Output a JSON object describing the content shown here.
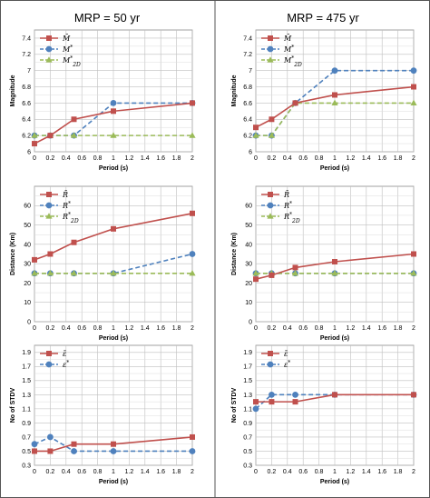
{
  "columns": [
    "MRP = 50 yr",
    "MRP = 475 yr"
  ],
  "chart_data": [
    {
      "type": "line",
      "col": 0,
      "row": 0,
      "xlabel": "Period (s)",
      "ylabel": "Magnitude",
      "xlim": [
        0,
        2
      ],
      "ylim": [
        6,
        7.5
      ],
      "xticks": [
        "0",
        "0.2",
        "0.4",
        "0.6",
        "0.8",
        "1",
        "1.2",
        "1.4",
        "1.6",
        "1.8",
        "2"
      ],
      "yticks": [
        "6",
        "6.2",
        "6.4",
        "6.6",
        "6.8",
        "7",
        "7.2",
        "7.4"
      ],
      "legend": "top-left",
      "series": [
        {
          "name": "M̄",
          "color": "#c0504d",
          "marker": "square",
          "dash": false,
          "x": [
            0,
            0.2,
            0.5,
            1,
            2
          ],
          "y": [
            6.1,
            6.2,
            6.4,
            6.5,
            6.6
          ]
        },
        {
          "name": "M*",
          "color": "#4f81bd",
          "marker": "circle",
          "dash": true,
          "x": [
            0,
            0.2,
            0.5,
            1,
            2
          ],
          "y": [
            6.2,
            6.2,
            6.2,
            6.6,
            6.6
          ]
        },
        {
          "name": "M*2D",
          "color": "#9bbb59",
          "marker": "triangle",
          "dash": true,
          "x": [
            0,
            0.2,
            0.5,
            1,
            2
          ],
          "y": [
            6.2,
            6.2,
            6.2,
            6.2,
            6.2
          ]
        }
      ]
    },
    {
      "type": "line",
      "col": 1,
      "row": 0,
      "xlabel": "Period (s)",
      "ylabel": "Magnitude",
      "xlim": [
        0,
        2
      ],
      "ylim": [
        6,
        7.5
      ],
      "xticks": [
        "0",
        "0.2",
        "0.4",
        "0.6",
        "0.8",
        "1",
        "1.2",
        "1.4",
        "1.6",
        "1.8",
        "2"
      ],
      "yticks": [
        "6",
        "6.2",
        "6.4",
        "6.6",
        "6.8",
        "7",
        "7.2",
        "7.4"
      ],
      "legend": "top-left",
      "series": [
        {
          "name": "M̄",
          "color": "#c0504d",
          "marker": "square",
          "dash": false,
          "x": [
            0,
            0.2,
            0.5,
            1,
            2
          ],
          "y": [
            6.3,
            6.4,
            6.6,
            6.7,
            6.8
          ]
        },
        {
          "name": "M*",
          "color": "#4f81bd",
          "marker": "circle",
          "dash": true,
          "x": [
            0,
            0.2,
            0.5,
            1,
            2
          ],
          "y": [
            6.2,
            6.2,
            6.6,
            7.0,
            7.0
          ]
        },
        {
          "name": "M*2D",
          "color": "#9bbb59",
          "marker": "triangle",
          "dash": true,
          "x": [
            0,
            0.2,
            0.5,
            1,
            2
          ],
          "y": [
            6.2,
            6.2,
            6.6,
            6.6,
            6.6
          ]
        }
      ]
    },
    {
      "type": "line",
      "col": 0,
      "row": 1,
      "xlabel": "Period (s)",
      "ylabel": "Distance (Km)",
      "xlim": [
        0,
        2
      ],
      "ylim": [
        0,
        70
      ],
      "xticks": [
        "0",
        "0.2",
        "0.4",
        "0.6",
        "0.8",
        "1",
        "1.2",
        "1.4",
        "1.6",
        "1.8",
        "2"
      ],
      "yticks": [
        "0",
        "10",
        "20",
        "30",
        "40",
        "50",
        "60"
      ],
      "legend": "top-left",
      "series": [
        {
          "name": "R̄",
          "color": "#c0504d",
          "marker": "square",
          "dash": false,
          "x": [
            0,
            0.2,
            0.5,
            1,
            2
          ],
          "y": [
            32,
            35,
            41,
            48,
            56
          ]
        },
        {
          "name": "R*",
          "color": "#4f81bd",
          "marker": "circle",
          "dash": true,
          "x": [
            0,
            0.2,
            0.5,
            1,
            2
          ],
          "y": [
            25,
            25,
            25,
            25,
            35
          ]
        },
        {
          "name": "R*2D",
          "color": "#9bbb59",
          "marker": "triangle",
          "dash": true,
          "x": [
            0,
            0.2,
            0.5,
            1,
            2
          ],
          "y": [
            25,
            25,
            25,
            25,
            25
          ]
        }
      ]
    },
    {
      "type": "line",
      "col": 1,
      "row": 1,
      "xlabel": "Period (s)",
      "ylabel": "Distance (Km)",
      "xlim": [
        0,
        2
      ],
      "ylim": [
        0,
        70
      ],
      "xticks": [
        "0",
        "0.2",
        "0.4",
        "0.6",
        "0.8",
        "1",
        "1.2",
        "1.4",
        "1.6",
        "1.8",
        "2"
      ],
      "yticks": [
        "0",
        "10",
        "20",
        "30",
        "40",
        "50",
        "60"
      ],
      "legend": "top-left",
      "series": [
        {
          "name": "R̄",
          "color": "#c0504d",
          "marker": "square",
          "dash": false,
          "x": [
            0,
            0.2,
            0.5,
            1,
            2
          ],
          "y": [
            22,
            24,
            28,
            31,
            35
          ]
        },
        {
          "name": "R*",
          "color": "#4f81bd",
          "marker": "circle",
          "dash": true,
          "x": [
            0,
            0.2,
            0.5,
            1,
            2
          ],
          "y": [
            25,
            25,
            25,
            25,
            25
          ]
        },
        {
          "name": "R*2D",
          "color": "#9bbb59",
          "marker": "triangle",
          "dash": true,
          "x": [
            0,
            0.2,
            0.5,
            1,
            2
          ],
          "y": [
            25,
            25,
            25,
            25,
            25
          ]
        }
      ]
    },
    {
      "type": "line",
      "col": 0,
      "row": 2,
      "xlabel": "Period (s)",
      "ylabel": "No of STDV",
      "xlim": [
        0,
        2
      ],
      "ylim": [
        0.3,
        2.0
      ],
      "xticks": [
        "0",
        "0.2",
        "0.4",
        "0.6",
        "0.8",
        "1",
        "1.2",
        "1.4",
        "1.6",
        "1.8",
        "2"
      ],
      "yticks": [
        "0.3",
        "0.5",
        "0.7",
        "0.9",
        "1.1",
        "1.3",
        "1.5",
        "1.7",
        "1.9"
      ],
      "legend": "top-left",
      "series": [
        {
          "name": "ε̄",
          "color": "#c0504d",
          "marker": "square",
          "dash": false,
          "x": [
            0,
            0.2,
            0.5,
            1,
            2
          ],
          "y": [
            0.5,
            0.5,
            0.6,
            0.6,
            0.7
          ]
        },
        {
          "name": "ε*",
          "color": "#4f81bd",
          "marker": "circle",
          "dash": true,
          "x": [
            0,
            0.2,
            0.5,
            1,
            2
          ],
          "y": [
            0.6,
            0.7,
            0.5,
            0.5,
            0.5
          ]
        }
      ]
    },
    {
      "type": "line",
      "col": 1,
      "row": 2,
      "xlabel": "Period (s)",
      "ylabel": "No of STDV",
      "xlim": [
        0,
        2
      ],
      "ylim": [
        0.3,
        2.0
      ],
      "xticks": [
        "0",
        "0.2",
        "0.4",
        "0.6",
        "0.8",
        "1",
        "1.2",
        "1.4",
        "1.6",
        "1.8",
        "2"
      ],
      "yticks": [
        "0.3",
        "0.5",
        "0.7",
        "0.9",
        "1.1",
        "1.3",
        "1.5",
        "1.7",
        "1.9"
      ],
      "legend": "top-left",
      "series": [
        {
          "name": "ε̄",
          "color": "#c0504d",
          "marker": "square",
          "dash": false,
          "x": [
            0,
            0.2,
            0.5,
            1,
            2
          ],
          "y": [
            1.2,
            1.2,
            1.2,
            1.3,
            1.3
          ]
        },
        {
          "name": "ε*",
          "color": "#4f81bd",
          "marker": "circle",
          "dash": true,
          "x": [
            0,
            0.2,
            0.5,
            1,
            2
          ],
          "y": [
            1.1,
            1.3,
            1.3,
            1.3,
            1.3
          ]
        }
      ]
    }
  ]
}
